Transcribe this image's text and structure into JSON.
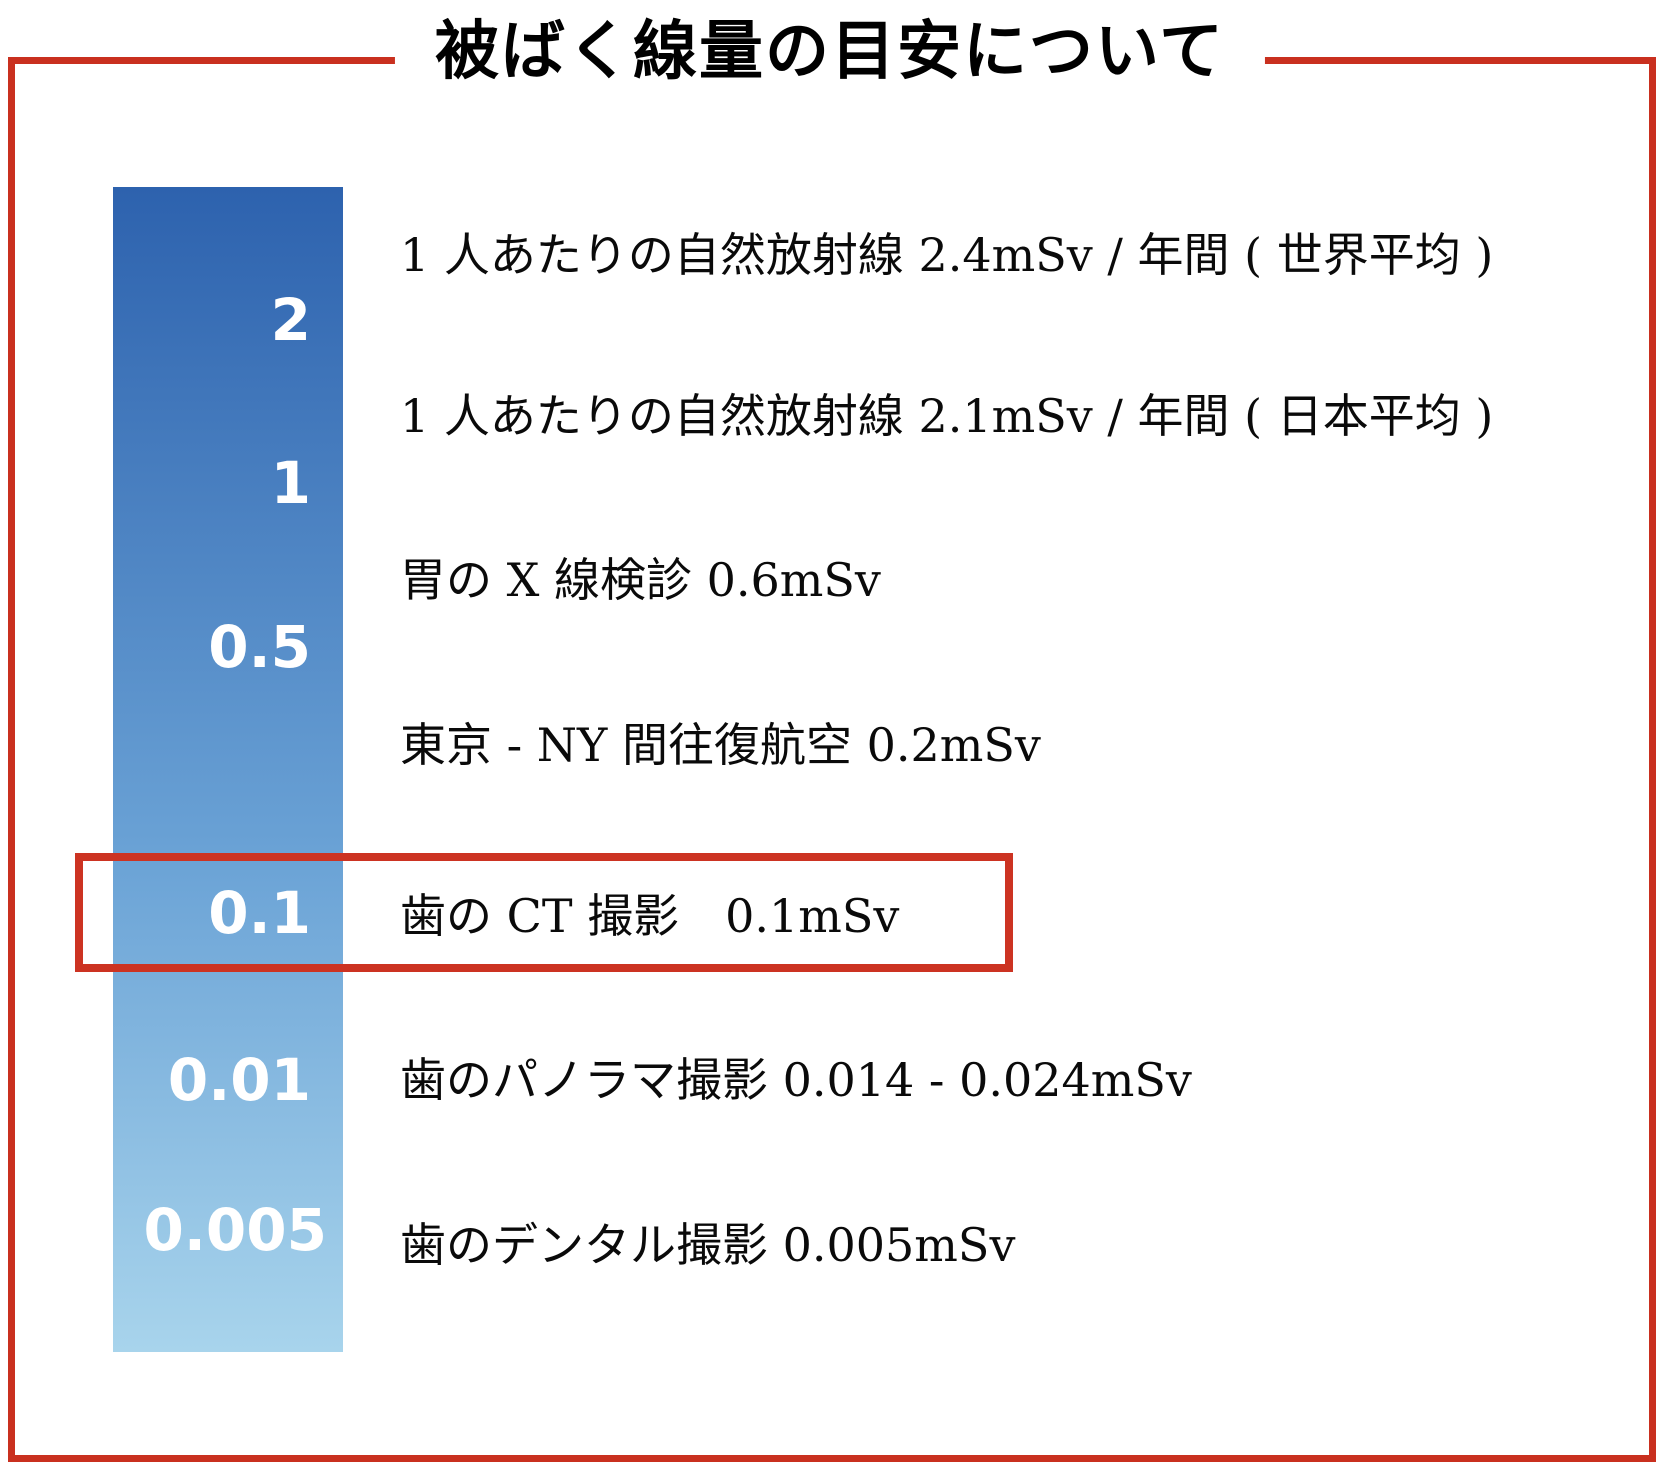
{
  "title": "被ばく線量の目安について",
  "colors": {
    "accent_red": "#c9301f",
    "highlight_red": "#cc3322",
    "bar_gradient_top": "#2d62ae",
    "bar_gradient_middle": "#6ba3d6",
    "bar_gradient_bottom": "#a8d4ec",
    "scale_text": "#ffffff",
    "body_text": "#0a0a0a"
  },
  "chart_data": {
    "type": "bar",
    "title": "被ばく線量の目安について",
    "unit": "mSv",
    "axis": {
      "orientation": "vertical",
      "scale": "logarithmic-like",
      "ticks": [
        "2",
        "1",
        "0.5",
        "0.1",
        "0.01",
        "0.005"
      ]
    },
    "items": [
      {
        "label": "1 人あたりの自然放射線 2.4mSv / 年間 ( 世界平均 )",
        "value_mSv": "2.4",
        "highlighted": false
      },
      {
        "label": "1 人あたりの自然放射線 2.1mSv / 年間 ( 日本平均 )",
        "value_mSv": "2.1",
        "highlighted": false
      },
      {
        "label": "胃の X 線検診 0.6mSv",
        "value_mSv": "0.6",
        "highlighted": false
      },
      {
        "label": "東京 - NY 間往復航空 0.2mSv",
        "value_mSv": "0.2",
        "highlighted": false
      },
      {
        "label": "歯の CT 撮影　0.1mSv",
        "value_mSv": "0.1",
        "highlighted": true
      },
      {
        "label": "歯のパノラマ撮影 0.014 - 0.024mSv",
        "value_mSv": "0.014-0.024",
        "highlighted": false
      },
      {
        "label": "歯のデンタル撮影 0.005mSv",
        "value_mSv": "0.005",
        "highlighted": false
      }
    ],
    "legend": "none",
    "grid": false
  }
}
